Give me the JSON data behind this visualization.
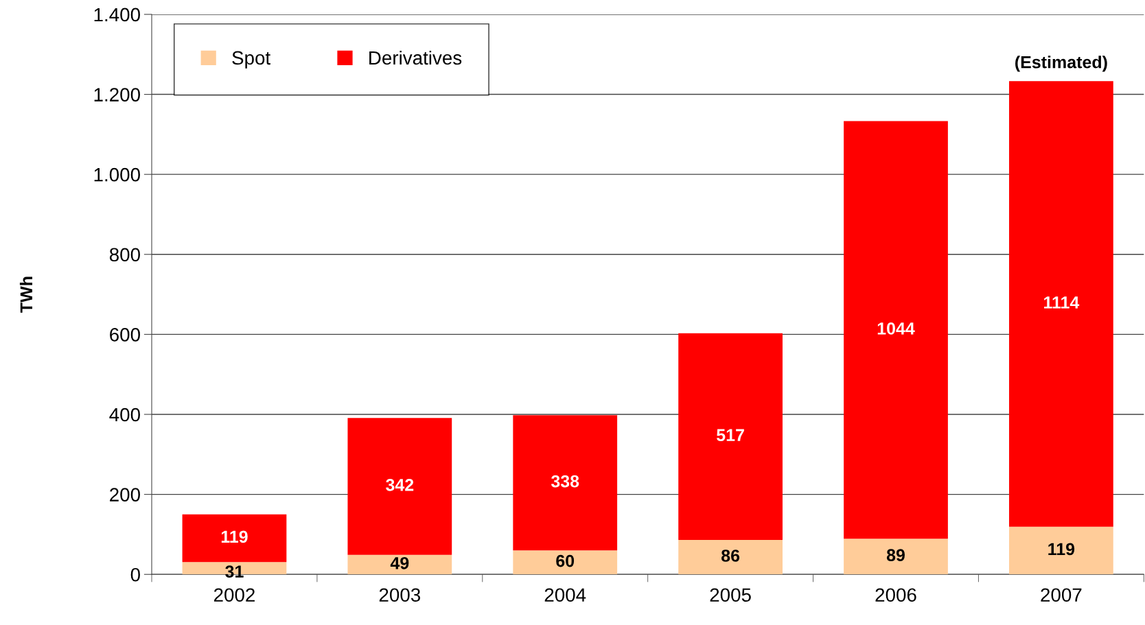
{
  "chart_data": {
    "type": "bar",
    "stacked": true,
    "ylabel": "TWh",
    "categories": [
      "2002",
      "2003",
      "2004",
      "2005",
      "2006",
      "2007"
    ],
    "series": [
      {
        "name": "Spot",
        "color": "#ffcc99",
        "values": [
          31,
          49,
          60,
          86,
          89,
          119
        ]
      },
      {
        "name": "Derivatives",
        "color": "#ff0000",
        "values": [
          119,
          342,
          338,
          517,
          1044,
          1114
        ]
      }
    ],
    "ylim": [
      0,
      1400
    ],
    "yticks": [
      0,
      200,
      400,
      600,
      800,
      {
        "value": 1000,
        "label": "1.000"
      },
      {
        "value": 1200,
        "label": "1.200"
      },
      {
        "value": 1400,
        "label": "1.400"
      }
    ],
    "grid": "y",
    "legend": "top left",
    "data_labels": true,
    "annotations": [
      {
        "text": "(Estimated)",
        "x": "2007",
        "y": 1233
      }
    ]
  }
}
